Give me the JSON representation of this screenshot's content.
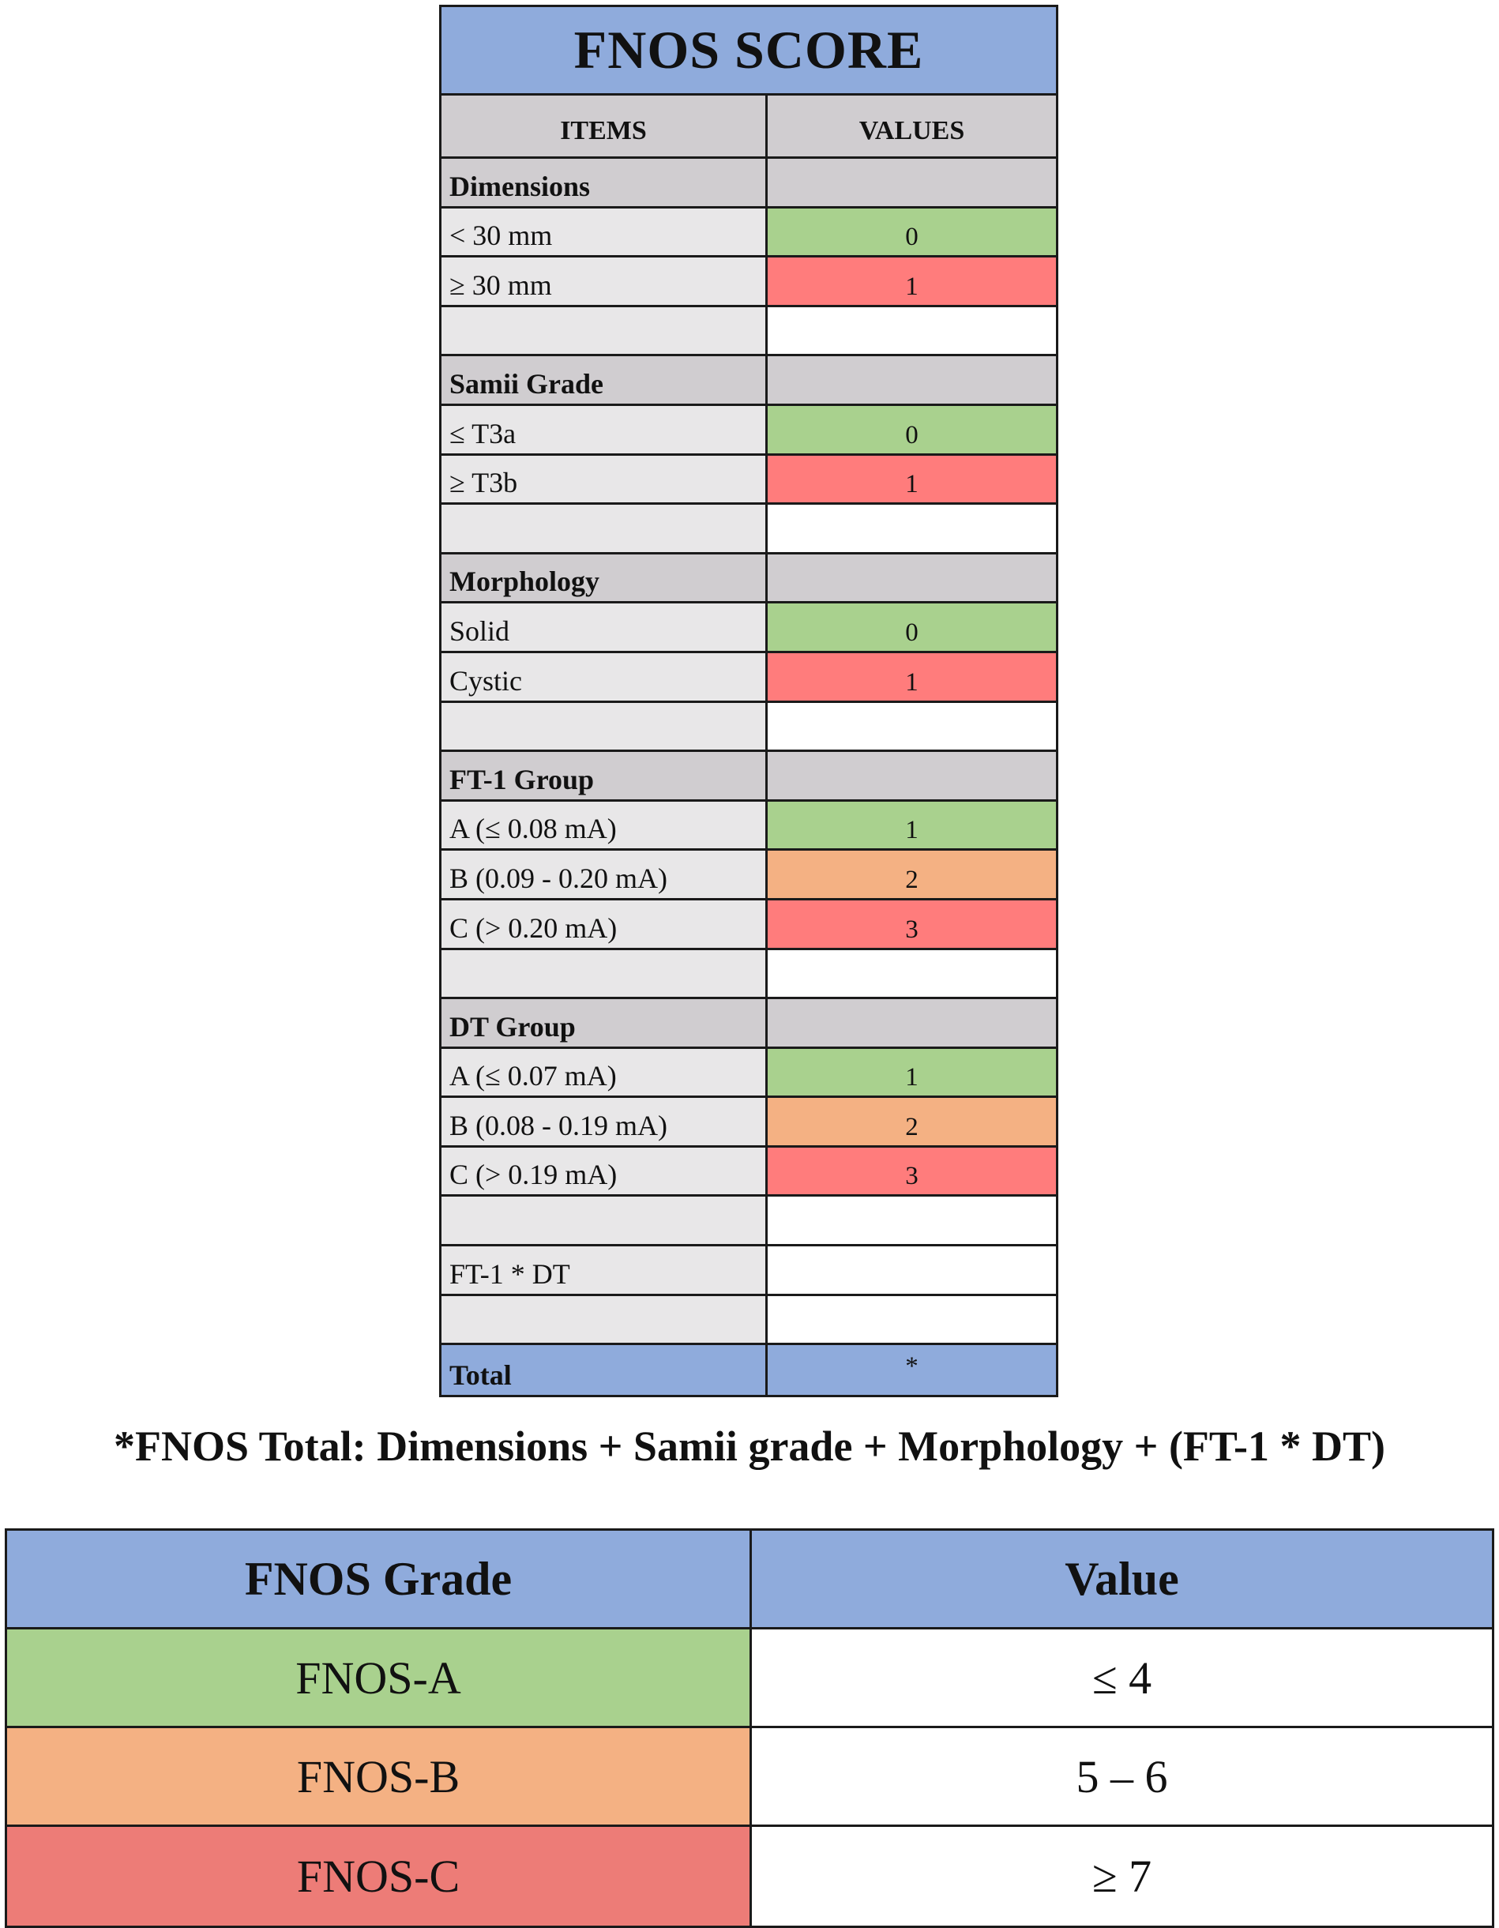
{
  "score_table": {
    "title": "FNOS SCORE",
    "header": {
      "items": "ITEMS",
      "values": "VALUES"
    },
    "rows": [
      {
        "type": "cat",
        "item": "Dimensions",
        "value": ""
      },
      {
        "type": "opt",
        "item": "< 30 mm",
        "value": "0",
        "color": "green"
      },
      {
        "type": "opt",
        "item": "≥ 30 mm",
        "value": "1",
        "color": "red"
      },
      {
        "type": "spacer",
        "item": "",
        "value": ""
      },
      {
        "type": "cat",
        "item": "Samii Grade",
        "value": ""
      },
      {
        "type": "opt",
        "item": "≤ T3a",
        "value": "0",
        "color": "green"
      },
      {
        "type": "opt",
        "item": "≥ T3b",
        "value": "1",
        "color": "red"
      },
      {
        "type": "spacer",
        "item": "",
        "value": ""
      },
      {
        "type": "cat",
        "item": "Morphology",
        "value": ""
      },
      {
        "type": "opt",
        "item": "Solid",
        "value": "0",
        "color": "green"
      },
      {
        "type": "opt",
        "item": "Cystic",
        "value": "1",
        "color": "red"
      },
      {
        "type": "spacer",
        "item": "",
        "value": ""
      },
      {
        "type": "cat",
        "item": "FT-1 Group",
        "value": ""
      },
      {
        "type": "opt",
        "item": "A (≤ 0.08 mA)",
        "value": "1",
        "color": "green"
      },
      {
        "type": "opt",
        "item": "B (0.09 - 0.20 mA)",
        "value": "2",
        "color": "orange"
      },
      {
        "type": "opt",
        "item": "C (> 0.20 mA)",
        "value": "3",
        "color": "red"
      },
      {
        "type": "spacer",
        "item": "",
        "value": ""
      },
      {
        "type": "cat",
        "item": "DT Group",
        "value": ""
      },
      {
        "type": "opt",
        "item": "A (≤ 0.07 mA)",
        "value": "1",
        "color": "green"
      },
      {
        "type": "opt",
        "item": "B (0.08 - 0.19 mA)",
        "value": "2",
        "color": "orange"
      },
      {
        "type": "opt",
        "item": "C (> 0.19 mA)",
        "value": "3",
        "color": "red"
      },
      {
        "type": "spacer",
        "item": "",
        "value": ""
      },
      {
        "type": "tri",
        "item": "FT-1 * DT",
        "value": ""
      },
      {
        "type": "spacer",
        "item": "",
        "value": ""
      },
      {
        "type": "total",
        "item": "Total",
        "value": "*"
      }
    ]
  },
  "formula": "*FNOS Total: Dimensions + Samii grade + Morphology + (FT-1 * DT)",
  "grade_table": {
    "header": {
      "grade": "FNOS Grade",
      "value": "Value"
    },
    "rows": [
      {
        "grade": "FNOS-A",
        "value": "≤ 4",
        "color": "green"
      },
      {
        "grade": "FNOS-B",
        "value": "5 – 6",
        "color": "orange"
      },
      {
        "grade": "FNOS-C",
        "value": "≥  7",
        "color": "red"
      }
    ]
  },
  "colors": {
    "header_blue": "#8fabdc",
    "category_gray": "#d0cdd0",
    "item_gray": "#e8e7e8",
    "green": "#a9d18e",
    "orange": "#f4b183",
    "red": "#ff7c7c",
    "grade_red": "#ed7c77"
  }
}
